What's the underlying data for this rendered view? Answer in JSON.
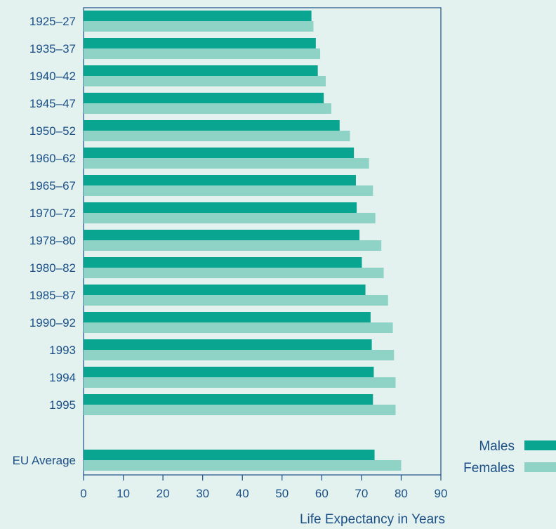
{
  "chart_data": {
    "type": "bar",
    "orientation": "horizontal",
    "categories": [
      "1925–27",
      "1935–37",
      "1940–42",
      "1945–47",
      "1950–52",
      "1960–62",
      "1965–67",
      "1970–72",
      "1978–80",
      "1980–82",
      "1985–87",
      "1990–92",
      "1993",
      "1994",
      "1995",
      "EU Average"
    ],
    "series": [
      {
        "name": "Males",
        "color": "#0aa591",
        "values": [
          57.4,
          58.5,
          59.0,
          60.5,
          64.5,
          68.1,
          68.6,
          68.8,
          69.5,
          70.1,
          71.0,
          72.3,
          72.6,
          73.1,
          72.9,
          73.3
        ]
      },
      {
        "name": "Females",
        "color": "#8fd3c7",
        "values": [
          57.9,
          59.6,
          61.0,
          62.4,
          67.1,
          71.9,
          72.9,
          73.5,
          75.0,
          75.6,
          76.7,
          77.9,
          78.2,
          78.6,
          78.6,
          80.0
        ]
      }
    ],
    "xlabel": "Life Expectancy in Years",
    "xlim": [
      0,
      90
    ],
    "xticks": [
      0,
      10,
      20,
      30,
      40,
      50,
      60,
      70,
      80,
      90
    ],
    "legend": "bottom-right",
    "grid": false
  }
}
